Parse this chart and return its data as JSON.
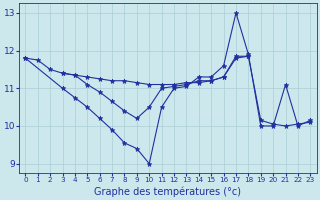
{
  "xlabel": "Graphe des températures (°c)",
  "background_color": "#cde8ec",
  "grid_color": "#aacdd4",
  "line_color": "#2030a0",
  "ylim": [
    8.75,
    13.25
  ],
  "yticks": [
    9,
    10,
    11,
    12,
    13
  ],
  "xticks": [
    0,
    1,
    2,
    3,
    4,
    5,
    6,
    7,
    8,
    9,
    10,
    11,
    12,
    13,
    14,
    15,
    16,
    17,
    18,
    19,
    20,
    21,
    22,
    23
  ],
  "line1_x": [
    0,
    1,
    2,
    3,
    4,
    5,
    6,
    7,
    8,
    9,
    10,
    11,
    12,
    13,
    14,
    15,
    16,
    17,
    18,
    19,
    20,
    21,
    22,
    23
  ],
  "line1_y": [
    11.8,
    11.75,
    11.5,
    11.4,
    11.35,
    11.3,
    11.25,
    11.2,
    11.2,
    11.15,
    11.1,
    11.1,
    11.1,
    11.15,
    11.15,
    11.2,
    11.3,
    11.85,
    11.85,
    10.15,
    10.05,
    10.0,
    10.05,
    10.1
  ],
  "line2_x": [
    0,
    3,
    4,
    5,
    6,
    7,
    8,
    9,
    10,
    11,
    12,
    13,
    14,
    15,
    16,
    17,
    18,
    19,
    20,
    21,
    22,
    23
  ],
  "line2_y": [
    11.8,
    11.0,
    10.75,
    10.5,
    10.2,
    9.9,
    9.55,
    9.4,
    9.0,
    10.5,
    11.0,
    11.05,
    11.3,
    11.3,
    11.6,
    13.0,
    11.9,
    10.0,
    10.0,
    11.1,
    10.0,
    10.15
  ],
  "line3_x": [
    3,
    4,
    5,
    6,
    7,
    8,
    9,
    10,
    11,
    12,
    13,
    14,
    15,
    16,
    17,
    18
  ],
  "line3_y": [
    11.4,
    11.35,
    11.1,
    10.9,
    10.65,
    10.4,
    10.2,
    10.5,
    11.0,
    11.05,
    11.1,
    11.2,
    11.2,
    11.3,
    11.8,
    11.85
  ]
}
